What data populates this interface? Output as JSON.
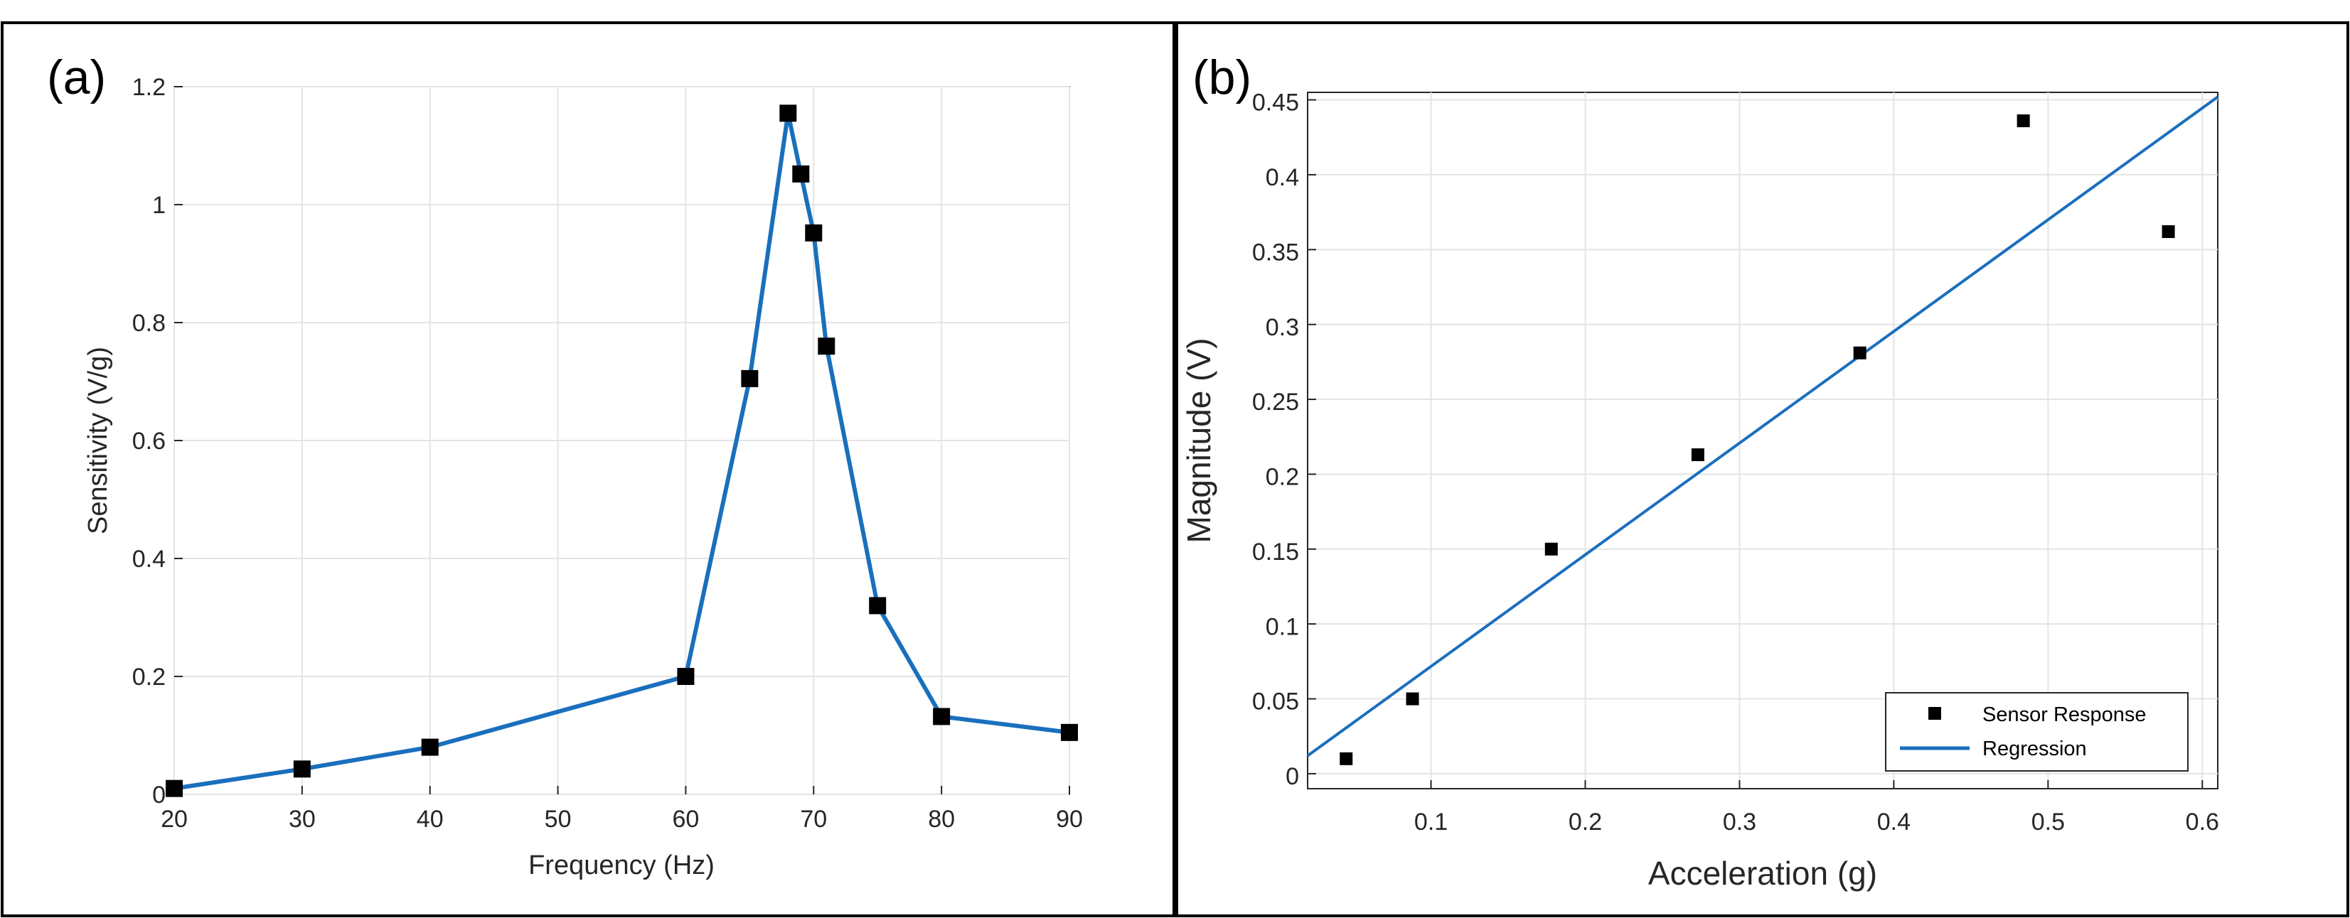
{
  "chart_data": [
    {
      "panel_label": "(a)",
      "type": "line",
      "xlabel": "Frequency (Hz)",
      "ylabel": "Sensitivity (V/g)",
      "xlim": [
        20,
        90
      ],
      "ylim": [
        0,
        1.2
      ],
      "xticks": [
        "20",
        "30",
        "40",
        "50",
        "60",
        "70",
        "80",
        "90"
      ],
      "yticks": [
        "0",
        "0.2",
        "0.4",
        "0.6",
        "0.8",
        "1",
        "1.2"
      ],
      "grid": true,
      "series": [
        {
          "name": "Sensitivity",
          "marker": "square",
          "x": [
            20,
            30,
            40,
            60,
            65,
            68,
            69,
            70,
            71,
            75,
            80,
            90
          ],
          "y": [
            0.01,
            0.043,
            0.08,
            0.2,
            0.705,
            1.155,
            1.052,
            0.952,
            0.76,
            0.32,
            0.132,
            0.105
          ]
        }
      ],
      "colors": {
        "line": "#1a6fbd",
        "marker": "#000000"
      }
    },
    {
      "panel_label": "(b)",
      "type": "scatter",
      "xlabel": "Acceleration (g)",
      "ylabel": "Magnitude (V)",
      "xlim": [
        0.02,
        0.61
      ],
      "ylim": [
        -0.01,
        0.455
      ],
      "xticks": [
        "0.1",
        "0.2",
        "0.3",
        "0.4",
        "0.5",
        "0.6"
      ],
      "yticks": [
        "0",
        "0.05",
        "0.1",
        "0.15",
        "0.2",
        "0.25",
        "0.3",
        "0.35",
        "0.4",
        "0.45"
      ],
      "grid": true,
      "legend_position": "bottom-right",
      "series": [
        {
          "name": "Sensor Response",
          "marker": "square",
          "x": [
            0.045,
            0.088,
            0.178,
            0.273,
            0.378,
            0.484,
            0.578
          ],
          "y": [
            0.01,
            0.05,
            0.15,
            0.213,
            0.281,
            0.436,
            0.362
          ]
        },
        {
          "name": "Regression",
          "line": true,
          "x": [
            0.02,
            0.61
          ],
          "y": [
            0.012,
            0.452
          ]
        }
      ],
      "colors": {
        "line": "#1a6fbd",
        "marker": "#000000"
      }
    }
  ]
}
